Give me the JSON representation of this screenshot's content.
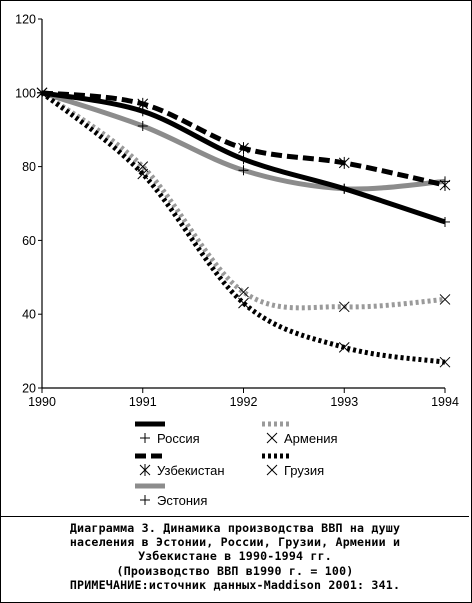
{
  "chart_data": {
    "type": "line",
    "title": "",
    "xlabel": "",
    "ylabel": "",
    "x": [
      1990,
      1991,
      1992,
      1993,
      1994
    ],
    "xticks": [
      "1990",
      "1991",
      "1992",
      "1993",
      "1994"
    ],
    "yticks": [
      "20",
      "40",
      "60",
      "80",
      "100",
      "120"
    ],
    "ylim": [
      20,
      120
    ],
    "grid": false,
    "legend_position": "bottom",
    "series": [
      {
        "name": "Россия",
        "values": [
          100,
          95,
          82,
          74,
          65
        ],
        "color": "#000000",
        "style": "solid",
        "marker": "plus-icon"
      },
      {
        "name": "Армения",
        "values": [
          100,
          80,
          46,
          42,
          44
        ],
        "color": "#9a9a9a",
        "style": "dotted",
        "marker": "x-icon"
      },
      {
        "name": "Узбекистан",
        "values": [
          100,
          97,
          85,
          81,
          75
        ],
        "color": "#000000",
        "style": "dashed",
        "marker": "asterisk-icon"
      },
      {
        "name": "Грузия",
        "values": [
          100,
          78,
          43,
          31,
          27
        ],
        "color": "#000000",
        "style": "dotted",
        "marker": "x-icon"
      },
      {
        "name": "Эстония",
        "values": [
          100,
          91,
          79,
          74,
          76
        ],
        "color": "#8c8c8c",
        "style": "solid",
        "marker": "plus-icon"
      }
    ]
  },
  "caption": {
    "line1": "Диаграмма 3. Динамика производства ВВП на душу",
    "line2": "населения в Эстонии, России, Грузии, Армении и",
    "line3": "Узбекистане в 1990-1994 гг.",
    "line4": "(Производство ВВП в1990 г. = 100)",
    "line5": "ПРИМЕЧАНИЕ:источник данных-Maddison 2001: 341."
  }
}
